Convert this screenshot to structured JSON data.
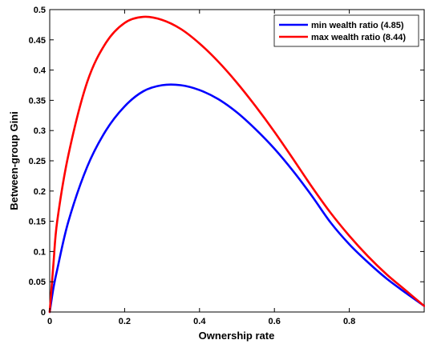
{
  "chart_data": {
    "type": "line",
    "title": "",
    "xlabel": "Ownership rate",
    "ylabel": "Between-group Gini",
    "xlim": [
      0,
      1
    ],
    "ylim": [
      0,
      0.5
    ],
    "xticks": [
      0,
      0.2,
      0.4,
      0.6,
      0.8
    ],
    "xtick_labels": [
      "0",
      "0.2",
      "0.4",
      "0.6",
      "0.8"
    ],
    "yticks": [
      0,
      0.05,
      0.1,
      0.15,
      0.2,
      0.25,
      0.3,
      0.35,
      0.4,
      0.45,
      0.5
    ],
    "ytick_labels": [
      "0",
      "0.05",
      "0.1",
      "0.15",
      "0.2",
      "0.25",
      "0.3",
      "0.35",
      "0.4",
      "0.45",
      "0.5"
    ],
    "grid": false,
    "legend_position": "top-right",
    "series": [
      {
        "name": "min wealth ratio (4.85)",
        "color": "#0000ff",
        "ratio": 4.85,
        "x": [
          0,
          0.01,
          0.02,
          0.05,
          0.1,
          0.15,
          0.2,
          0.25,
          0.3,
          0.35,
          0.4,
          0.45,
          0.5,
          0.55,
          0.6,
          0.65,
          0.7,
          0.75,
          0.8,
          0.85,
          0.9,
          0.95,
          1.0
        ],
        "values": [
          0,
          0.04,
          0.07,
          0.15,
          0.24,
          0.3,
          0.34,
          0.365,
          0.375,
          0.375,
          0.367,
          0.352,
          0.33,
          0.302,
          0.27,
          0.233,
          0.192,
          0.148,
          0.112,
          0.082,
          0.055,
          0.032,
          0.01
        ]
      },
      {
        "name": "max wealth ratio (8.44)",
        "color": "#ff0000",
        "ratio": 8.44,
        "x": [
          0,
          0.01,
          0.02,
          0.05,
          0.1,
          0.15,
          0.2,
          0.25,
          0.3,
          0.35,
          0.4,
          0.45,
          0.5,
          0.55,
          0.6,
          0.65,
          0.7,
          0.75,
          0.8,
          0.85,
          0.9,
          0.95,
          1.0
        ],
        "values": [
          0,
          0.08,
          0.15,
          0.26,
          0.38,
          0.445,
          0.478,
          0.488,
          0.483,
          0.468,
          0.444,
          0.414,
          0.379,
          0.34,
          0.298,
          0.253,
          0.207,
          0.164,
          0.126,
          0.092,
          0.062,
          0.036,
          0.01
        ]
      }
    ]
  }
}
